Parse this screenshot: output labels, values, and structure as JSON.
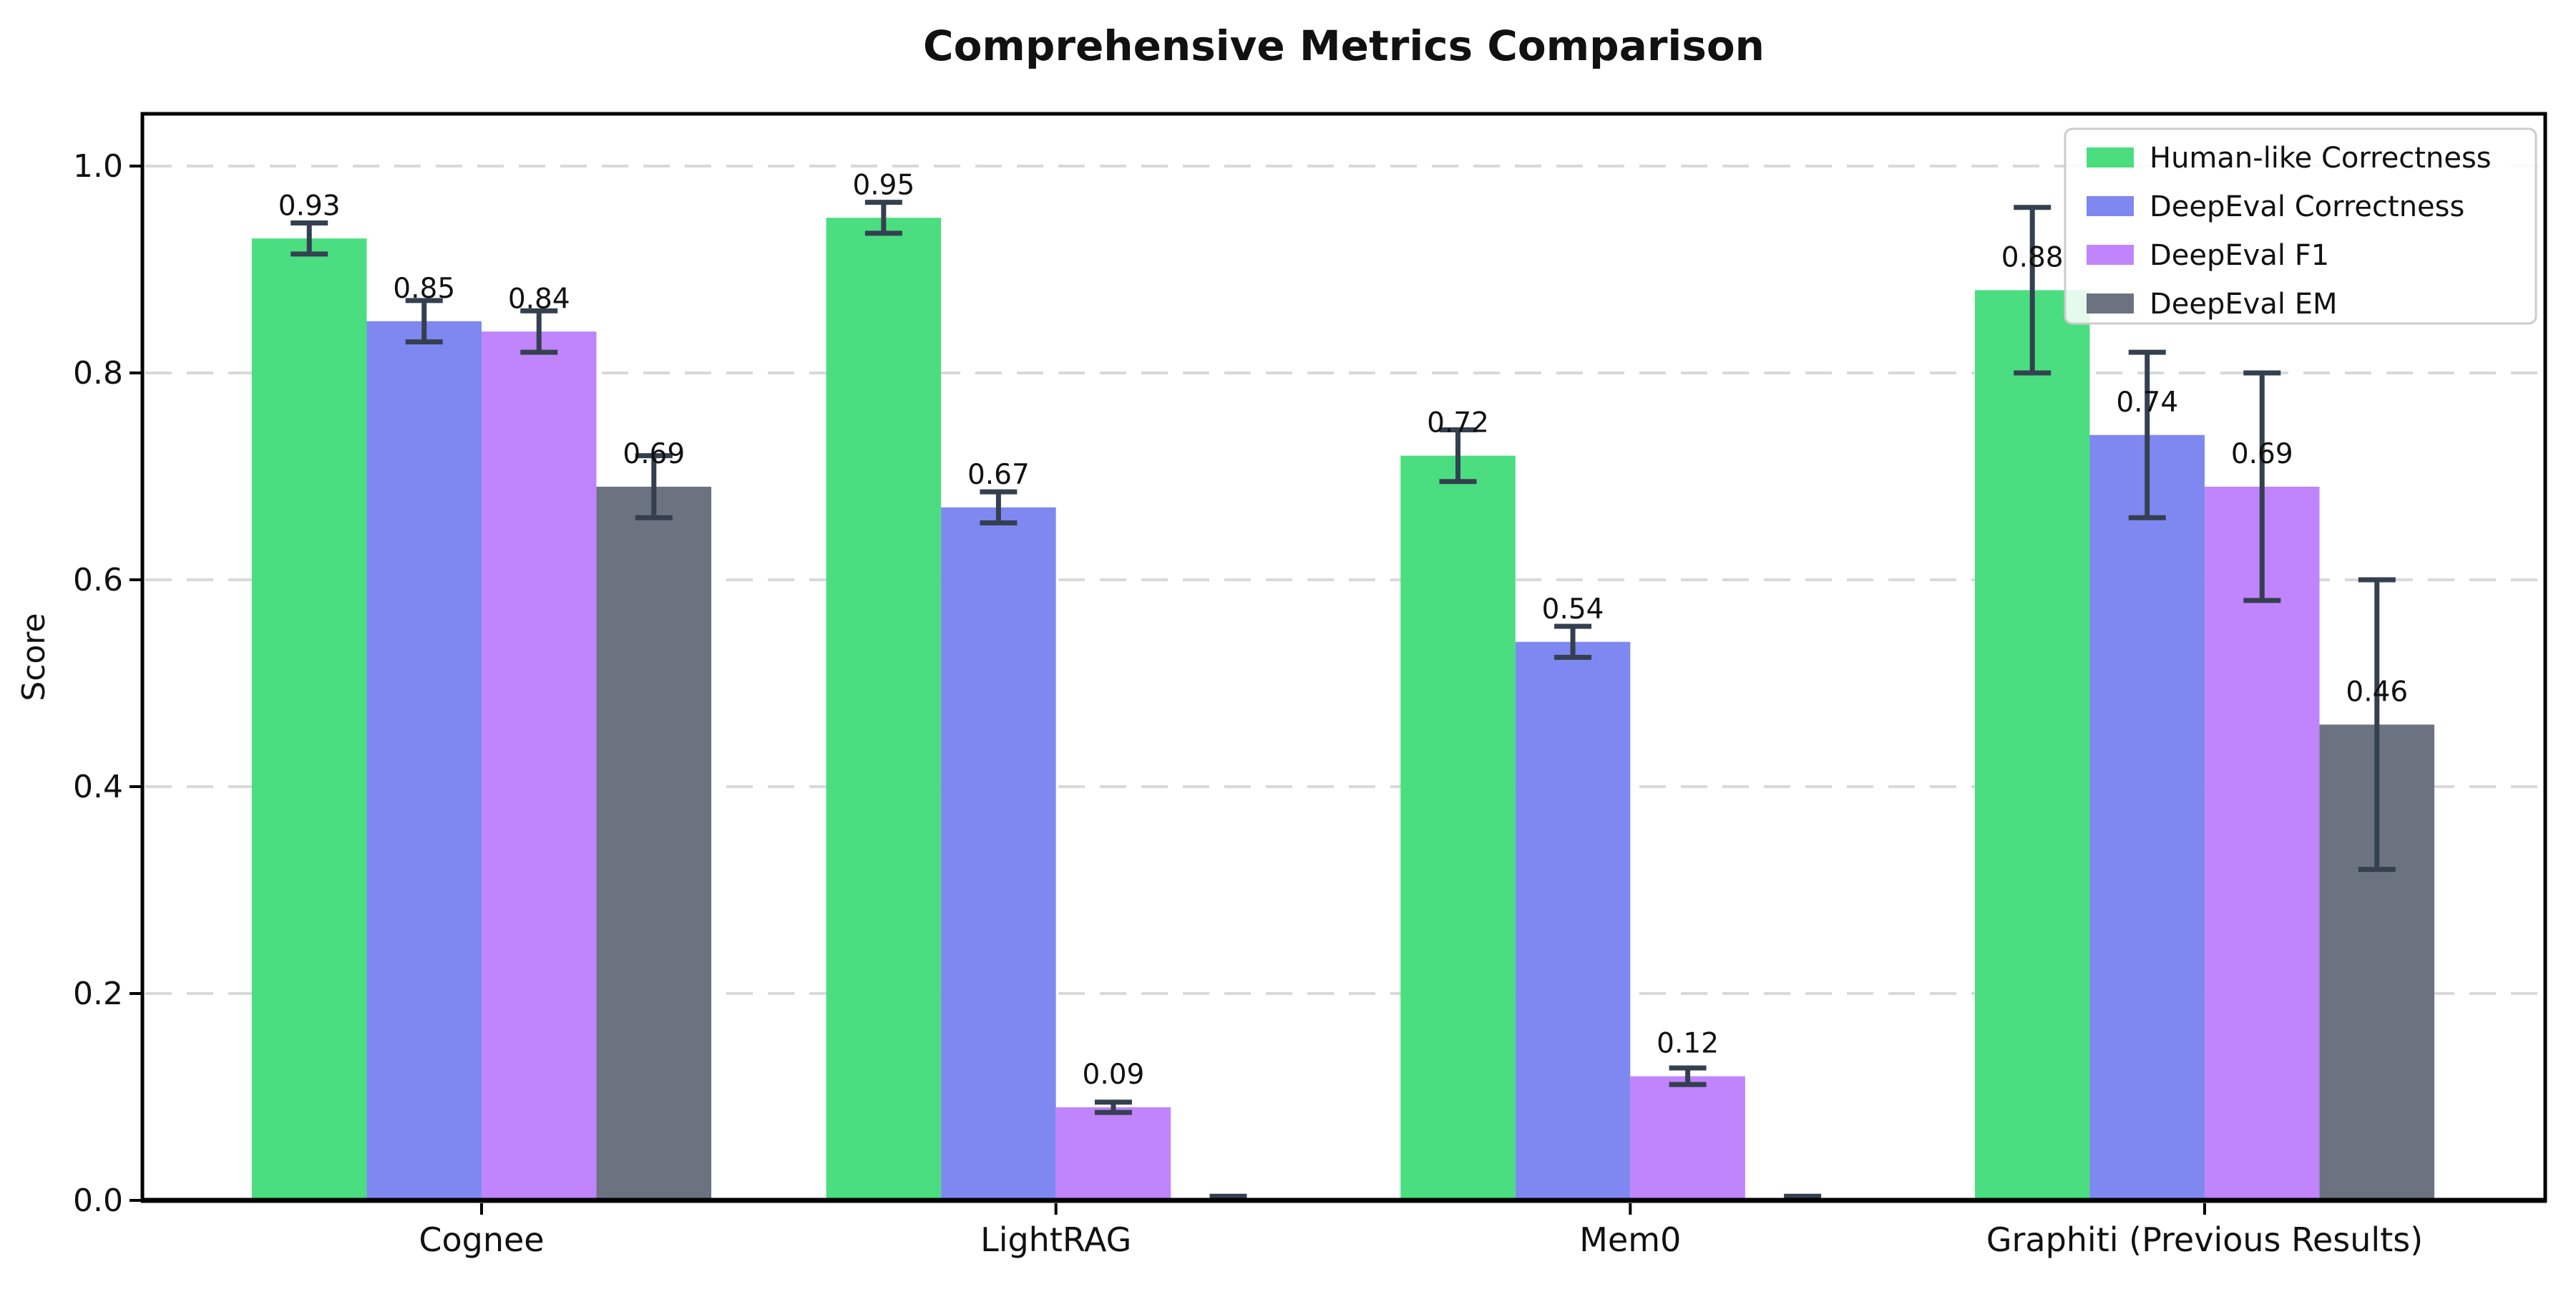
{
  "chart_data": {
    "type": "bar",
    "title": "Comprehensive Metrics Comparison",
    "ylabel": "Score",
    "xlabel": "",
    "categories": [
      "Cognee",
      "LightRAG",
      "Mem0",
      "Graphiti (Previous Results)"
    ],
    "series": [
      {
        "name": "Human-like Correctness",
        "color": "#4ade80",
        "values": [
          0.93,
          0.95,
          0.72,
          0.88
        ],
        "errors": [
          0.015,
          0.015,
          0.025,
          0.08
        ]
      },
      {
        "name": "DeepEval Correctness",
        "color": "#7e88f0",
        "values": [
          0.85,
          0.67,
          0.54,
          0.74
        ],
        "errors": [
          0.02,
          0.015,
          0.015,
          0.08
        ]
      },
      {
        "name": "DeepEval F1",
        "color": "#c084fc",
        "values": [
          0.84,
          0.09,
          0.12,
          0.69
        ],
        "errors": [
          0.02,
          0.005,
          0.008,
          0.11
        ]
      },
      {
        "name": "DeepEval EM",
        "color": "#6b7280",
        "values": [
          0.69,
          0.0,
          0.0,
          0.46
        ],
        "errors": [
          0.03,
          0.004,
          0.004,
          0.14
        ]
      }
    ],
    "ylim": [
      0,
      1.05
    ],
    "yticks": [
      "0.0",
      "0.2",
      "0.4",
      "0.6",
      "0.8",
      "1.0"
    ],
    "grid": {
      "axis": "y",
      "style": "dashed",
      "color": "#d9d9d9"
    },
    "legend": {
      "position": "upper right",
      "border_color": "#cccccc",
      "background": "#ffffff"
    },
    "error_bar_color": "#34404f",
    "spine_color": "#000000",
    "value_label_decimals": 2
  }
}
